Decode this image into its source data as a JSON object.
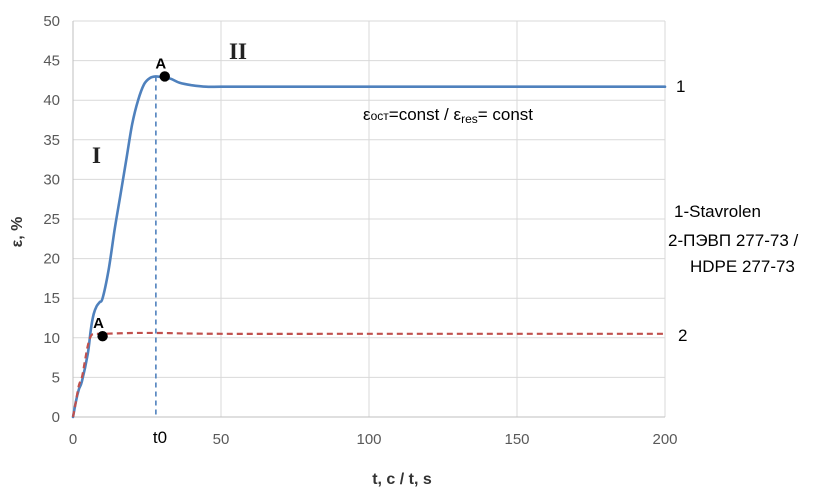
{
  "chart_data": {
    "type": "line",
    "xlabel": "t, c / t, s",
    "ylabel": "ε, %",
    "xlim": [
      0,
      200
    ],
    "ylim": [
      0,
      50
    ],
    "xticks": [
      "0",
      "50",
      "100",
      "150",
      "200"
    ],
    "yticks": [
      "0",
      "5",
      "10",
      "15",
      "20",
      "25",
      "30",
      "35",
      "40",
      "45",
      "50"
    ],
    "grid": true,
    "series": [
      {
        "name": "1",
        "color": "#4f81bd",
        "style": "solid",
        "x": [
          0,
          1,
          2,
          3,
          5,
          6,
          7,
          8,
          9,
          10,
          12,
          14,
          16,
          18,
          20,
          22,
          24,
          26,
          28,
          30,
          33,
          36,
          40,
          45,
          50,
          60,
          80,
          100,
          150,
          200
        ],
        "y": [
          0,
          2,
          3.5,
          4.5,
          8,
          11,
          13,
          14,
          14.5,
          15,
          18.5,
          23.5,
          28,
          32.5,
          37,
          40,
          42,
          42.8,
          43,
          42.9,
          42.7,
          42.2,
          41.9,
          41.7,
          41.7,
          41.7,
          41.7,
          41.7,
          41.7,
          41.7
        ]
      },
      {
        "name": "2",
        "color": "#c0504d",
        "style": "dashed",
        "x": [
          0,
          1,
          2,
          3,
          4,
          5,
          6,
          7,
          8,
          10,
          20,
          30,
          50,
          100,
          150,
          200
        ],
        "y": [
          0,
          2,
          4,
          5,
          7,
          9,
          10.2,
          10.5,
          10.5,
          10.5,
          10.6,
          10.6,
          10.5,
          10.5,
          10.5,
          10.5
        ]
      }
    ],
    "points": [
      {
        "label": "A",
        "x": 31,
        "y": 43
      },
      {
        "label": "A",
        "x": 10,
        "y": 10.2
      }
    ],
    "t0": {
      "label": "t0",
      "x": 28,
      "y": 43
    },
    "regions": [
      "I",
      "II"
    ],
    "annotation": {
      "eps1": "ε",
      "sub1": "ост",
      "mid": "=const  / ε",
      "sub2": "res",
      "end": "= const"
    },
    "legend": [
      "1-Stavrolen",
      "2-ПЭВП 277-73 /",
      "HDPE 277-73"
    ]
  }
}
